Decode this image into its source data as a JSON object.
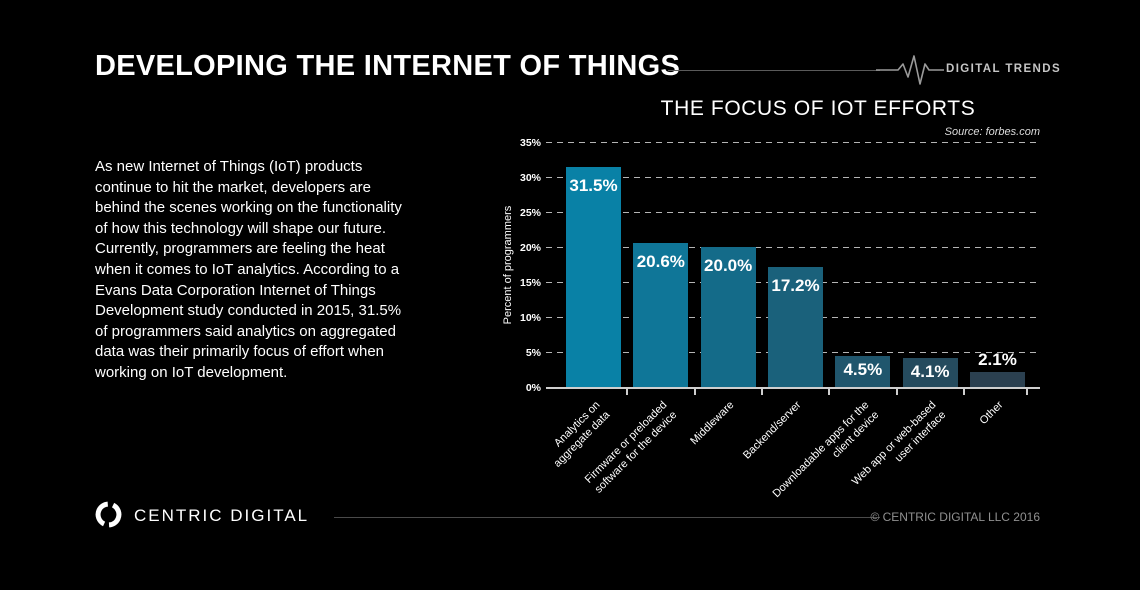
{
  "header": {
    "title": "DEVELOPING THE INTERNET OF THINGS",
    "brand_label": "DIGITAL TRENDS"
  },
  "intro": {
    "text": "As new Internet of Things (IoT) products continue to hit the market, developers are behind the scenes working on the functionality of how this technology will shape our future. Currently, programmers are feeling the heat when it comes to IoT analytics. According to a Evans Data Corporation Internet of Things Development study conducted in 2015, 31.5% of programmers said analytics on aggregated data was their primarily focus of effort when working on IoT development."
  },
  "chart_data": {
    "type": "bar",
    "title": "THE FOCUS OF IOT EFFORTS",
    "source": "Source: forbes.com",
    "ylabel": "Percent of programmers",
    "xlabel": "",
    "ylim": [
      0,
      35
    ],
    "ytick_step": 5,
    "yticks": [
      "0%",
      "5%",
      "10%",
      "15%",
      "20%",
      "25%",
      "30%",
      "35%"
    ],
    "grid": "horizontal dashed",
    "legend": "none",
    "categories": [
      "Analytics on aggregate data",
      "Firmware or preloaded software for the device",
      "Middleware",
      "Backend/server",
      "Downloadable apps for the client device",
      "Web app or web-based user interface",
      "Other"
    ],
    "category_lines": [
      [
        "Analytics on",
        "aggregate data"
      ],
      [
        "Firmware or preloaded",
        "software for the device"
      ],
      [
        "Middleware"
      ],
      [
        "Backend/server"
      ],
      [
        "Downloadable apps for the",
        "client device"
      ],
      [
        "Web app or web-based",
        "user interface"
      ],
      [
        "Other"
      ]
    ],
    "values": [
      31.5,
      20.6,
      20.0,
      17.2,
      4.5,
      4.1,
      2.1
    ],
    "value_labels": [
      "31.5%",
      "20.6%",
      "20.0%",
      "17.2%",
      "4.5%",
      "4.1%",
      "2.1%"
    ],
    "bar_colors": [
      "#0981a6",
      "#0f7698",
      "#146b89",
      "#1a617b",
      "#20566d",
      "#254b5e",
      "#2b4050"
    ],
    "colors": {
      "background": "#000000",
      "grid": "#b5b5b5",
      "axis": "#cfcfcf",
      "text": "#ffffff"
    }
  },
  "footer": {
    "logo_text": "CENTRIC DIGITAL",
    "copyright": "© CENTRIC DIGITAL LLC 2016"
  }
}
